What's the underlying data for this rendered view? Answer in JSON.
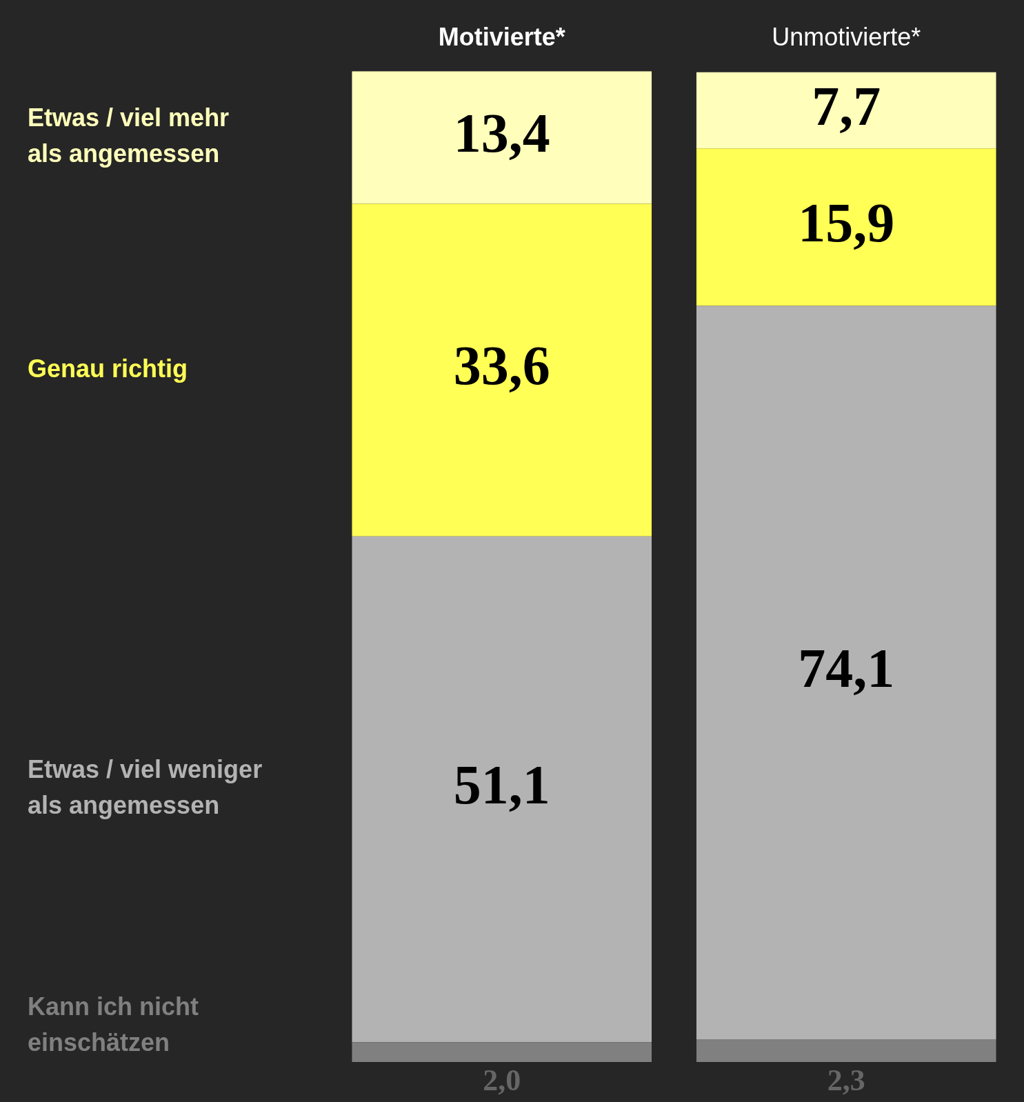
{
  "chart_data": {
    "type": "bar",
    "stacked": true,
    "categories": [
      "Motivierte*",
      "Unmotivierte*"
    ],
    "series": [
      {
        "name": "Kann ich nicht einschätzen",
        "color": "#808080",
        "values": [
          2.0,
          2.3
        ],
        "value_labels": [
          "2,0",
          "2,3"
        ]
      },
      {
        "name": "Etwas / viel weniger als angemessen",
        "color": "#b3b3b3",
        "values": [
          51.1,
          74.1
        ],
        "value_labels": [
          "51,1",
          "74,1"
        ]
      },
      {
        "name": "Genau richtig",
        "color": "#ffff55",
        "values": [
          33.6,
          15.9
        ],
        "value_labels": [
          "33,6",
          "15,9"
        ]
      },
      {
        "name": "Etwas / viel mehr als angemessen",
        "color": "#ffffbb",
        "values": [
          13.4,
          7.7
        ],
        "value_labels": [
          "13,4",
          "7,7"
        ]
      }
    ],
    "legend": false,
    "tick_labels": "x"
  }
}
